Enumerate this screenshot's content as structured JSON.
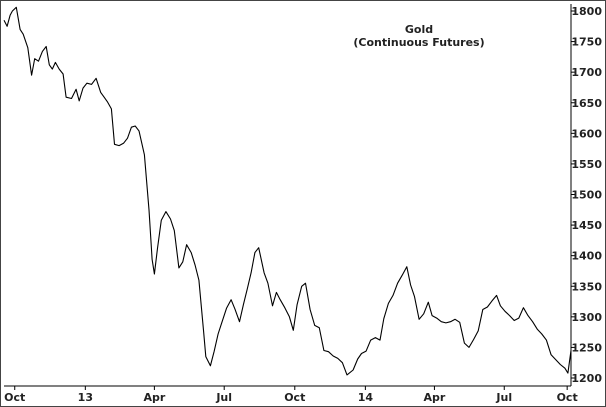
{
  "chart_data": {
    "type": "line",
    "title": "Gold",
    "subtitle": "(Continuous Futures)",
    "xlabel": "",
    "ylabel": "",
    "x_tick_labels": [
      "Oct",
      "13",
      "Apr",
      "Jul",
      "Oct",
      "14",
      "Apr",
      "Jul",
      "Oct"
    ],
    "y_ticks": [
      1200,
      1250,
      1300,
      1350,
      1400,
      1450,
      1500,
      1550,
      1600,
      1650,
      1700,
      1750,
      1800
    ],
    "ylim": [
      1185,
      1815
    ],
    "xlim": [
      "2012-10-01",
      "2014-10-10"
    ],
    "grid": false,
    "y_axis_position": "right",
    "line_color": "#000000",
    "series": [
      {
        "x": [
          "2012-10-01",
          "2012-10-05",
          "2012-10-09",
          "2012-10-12",
          "2012-10-17",
          "2012-10-22",
          "2012-10-26",
          "2012-11-01",
          "2012-11-06",
          "2012-11-10",
          "2012-11-15",
          "2012-11-20",
          "2012-11-25",
          "2012-11-29",
          "2012-12-03",
          "2012-12-07",
          "2012-12-12",
          "2012-12-17",
          "2012-12-21",
          "2012-12-28",
          "2013-01-03",
          "2013-01-07",
          "2013-01-12",
          "2013-01-17",
          "2013-01-23",
          "2013-01-29",
          "2013-02-04",
          "2013-02-08",
          "2013-02-13",
          "2013-02-18",
          "2013-02-22",
          "2013-02-28",
          "2013-03-06",
          "2013-03-11",
          "2013-03-16",
          "2013-03-21",
          "2013-03-26",
          "2013-04-02",
          "2013-04-08",
          "2013-04-12",
          "2013-04-15",
          "2013-04-19",
          "2013-04-24",
          "2013-04-30",
          "2013-05-06",
          "2013-05-11",
          "2013-05-17",
          "2013-05-22",
          "2013-05-27",
          "2013-06-02",
          "2013-06-07",
          "2013-06-12",
          "2013-06-18",
          "2013-06-21",
          "2013-06-27",
          "2013-07-02",
          "2013-07-07",
          "2013-07-12",
          "2013-07-18",
          "2013-07-24",
          "2013-07-29",
          "2013-08-04",
          "2013-08-09",
          "2013-08-14",
          "2013-08-19",
          "2013-08-24",
          "2013-08-29",
          "2013-09-05",
          "2013-09-10",
          "2013-09-16",
          "2013-09-21",
          "2013-09-26",
          "2013-10-02",
          "2013-10-08",
          "2013-10-13",
          "2013-10-18",
          "2013-10-24",
          "2013-10-29",
          "2013-11-04",
          "2013-11-10",
          "2013-11-16",
          "2013-11-22",
          "2013-11-28",
          "2013-12-04",
          "2013-12-10",
          "2013-12-16",
          "2013-12-22",
          "2013-12-30",
          "2014-01-05",
          "2014-01-10",
          "2014-01-16",
          "2014-01-22",
          "2014-01-28",
          "2014-02-03",
          "2014-02-08",
          "2014-02-14",
          "2014-02-20",
          "2014-02-26",
          "2014-03-04",
          "2014-03-10",
          "2014-03-15",
          "2014-03-20",
          "2014-03-26",
          "2014-04-01",
          "2014-04-07",
          "2014-04-12",
          "2014-04-18",
          "2014-04-24",
          "2014-04-30",
          "2014-05-06",
          "2014-05-12",
          "2014-05-18",
          "2014-05-24",
          "2014-05-30",
          "2014-06-05",
          "2014-06-11",
          "2014-06-17",
          "2014-06-23",
          "2014-06-29",
          "2014-07-05",
          "2014-07-10",
          "2014-07-16",
          "2014-07-22",
          "2014-07-28",
          "2014-08-03",
          "2014-08-09",
          "2014-08-15",
          "2014-08-21",
          "2014-08-27",
          "2014-09-02",
          "2014-09-08",
          "2014-09-14",
          "2014-09-20",
          "2014-09-26",
          "2014-10-02",
          "2014-10-06",
          "2014-10-10"
        ],
        "values": [
          1785,
          1775,
          1793,
          1800,
          1806,
          1770,
          1762,
          1740,
          1695,
          1722,
          1718,
          1734,
          1742,
          1712,
          1705,
          1716,
          1705,
          1697,
          1659,
          1657,
          1672,
          1653,
          1674,
          1682,
          1680,
          1690,
          1667,
          1660,
          1651,
          1640,
          1582,
          1580,
          1584,
          1592,
          1610,
          1612,
          1604,
          1565,
          1475,
          1394,
          1370,
          1412,
          1458,
          1472,
          1460,
          1441,
          1380,
          1390,
          1418,
          1405,
          1385,
          1360,
          1278,
          1235,
          1220,
          1244,
          1272,
          1291,
          1314,
          1328,
          1313,
          1292,
          1320,
          1345,
          1372,
          1405,
          1413,
          1372,
          1355,
          1318,
          1340,
          1328,
          1315,
          1300,
          1278,
          1320,
          1350,
          1355,
          1312,
          1286,
          1282,
          1245,
          1243,
          1236,
          1232,
          1225,
          1205,
          1213,
          1231,
          1240,
          1244,
          1262,
          1266,
          1262,
          1297,
          1322,
          1335,
          1355,
          1368,
          1382,
          1352,
          1333,
          1296,
          1305,
          1324,
          1302,
          1298,
          1292,
          1290,
          1292,
          1296,
          1291,
          1257,
          1250,
          1263,
          1277,
          1312,
          1316,
          1326,
          1335,
          1318,
          1309,
          1302,
          1294,
          1298,
          1315,
          1302,
          1292,
          1280,
          1272,
          1262,
          1238,
          1230,
          1222,
          1216,
          1208,
          1245
        ]
      }
    ]
  }
}
